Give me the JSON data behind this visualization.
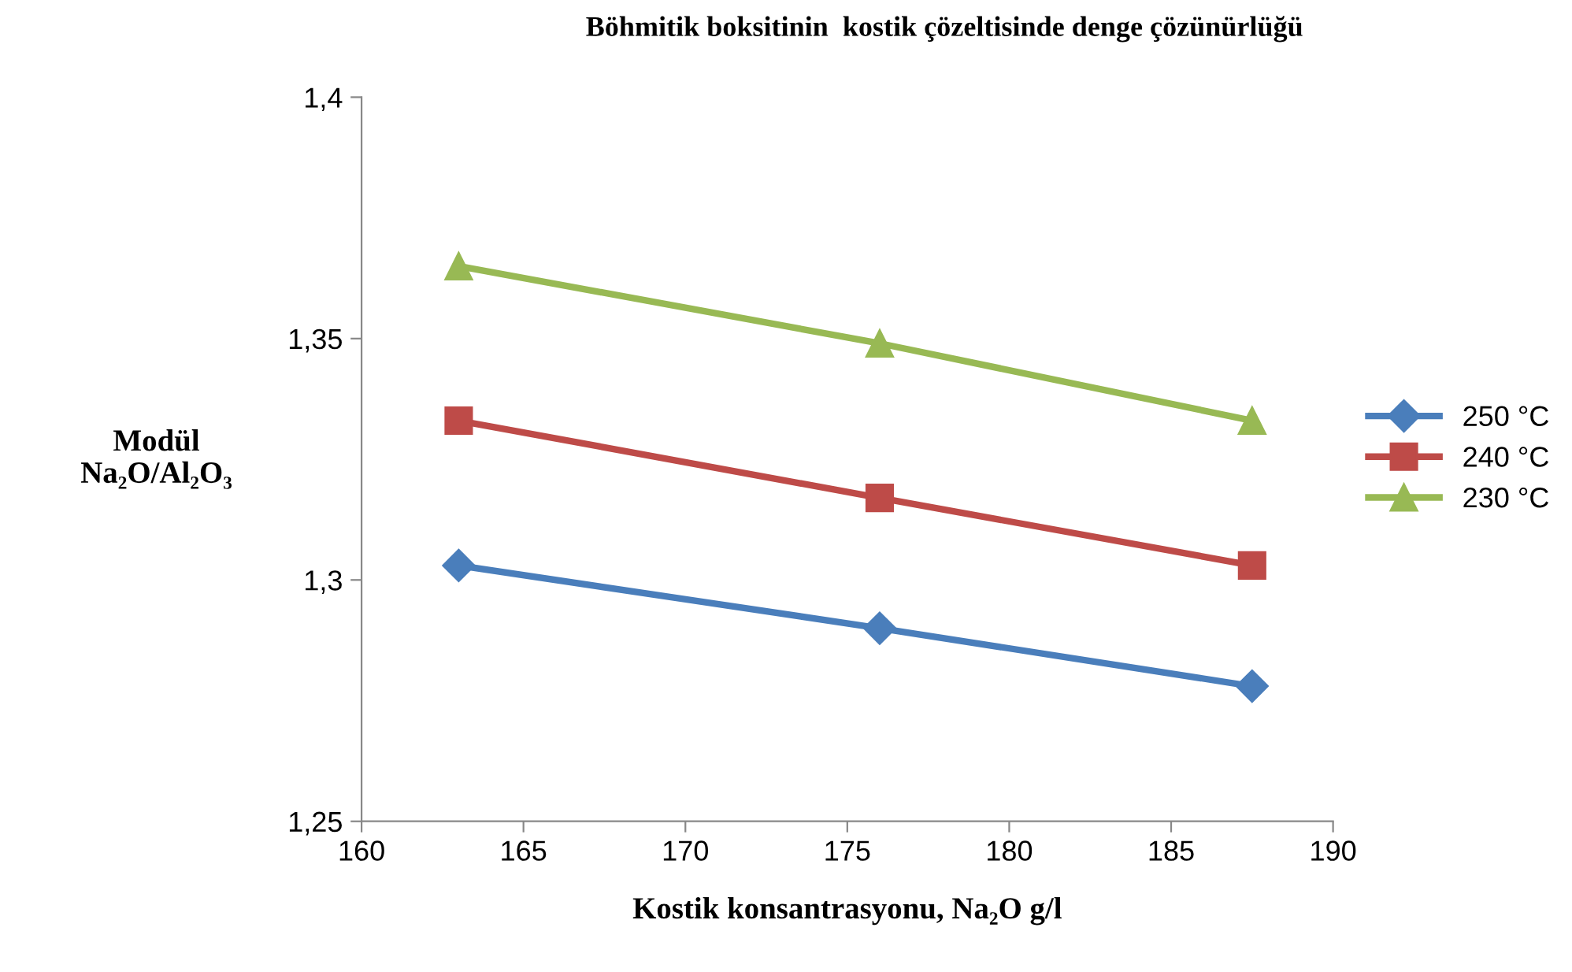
{
  "chart_data": {
    "type": "line",
    "title": "Böhmitik boksitinin  kostik çözeltisinde denge çözünürlüğü",
    "xlabel": "Kostik konsantrasyonu, Na₂O g/l",
    "ylabel": "Modül\nNa₂O/Al₂O₃",
    "x": [
      163,
      176,
      187.5
    ],
    "series": [
      {
        "name": "250 °C",
        "color": "#4a7ebb",
        "marker": "diamond",
        "values": [
          1.303,
          1.29,
          1.278
        ]
      },
      {
        "name": "240 °C",
        "color": "#be4b48",
        "marker": "square",
        "values": [
          1.333,
          1.317,
          1.303
        ]
      },
      {
        "name": "230 °C",
        "color": "#98b954",
        "marker": "triangle",
        "values": [
          1.365,
          1.349,
          1.333
        ]
      }
    ],
    "xlim": [
      160,
      190
    ],
    "xticks": [
      160,
      165,
      170,
      175,
      180,
      185,
      190
    ],
    "ylim": [
      1.25,
      1.4
    ],
    "yticks": [
      {
        "value": 1.25,
        "label": "1,25"
      },
      {
        "value": 1.3,
        "label": "1,3"
      },
      {
        "value": 1.35,
        "label": "1,35"
      },
      {
        "value": 1.4,
        "label": "1,4"
      }
    ],
    "grid": false,
    "legend": "right",
    "line_style": "solid"
  }
}
